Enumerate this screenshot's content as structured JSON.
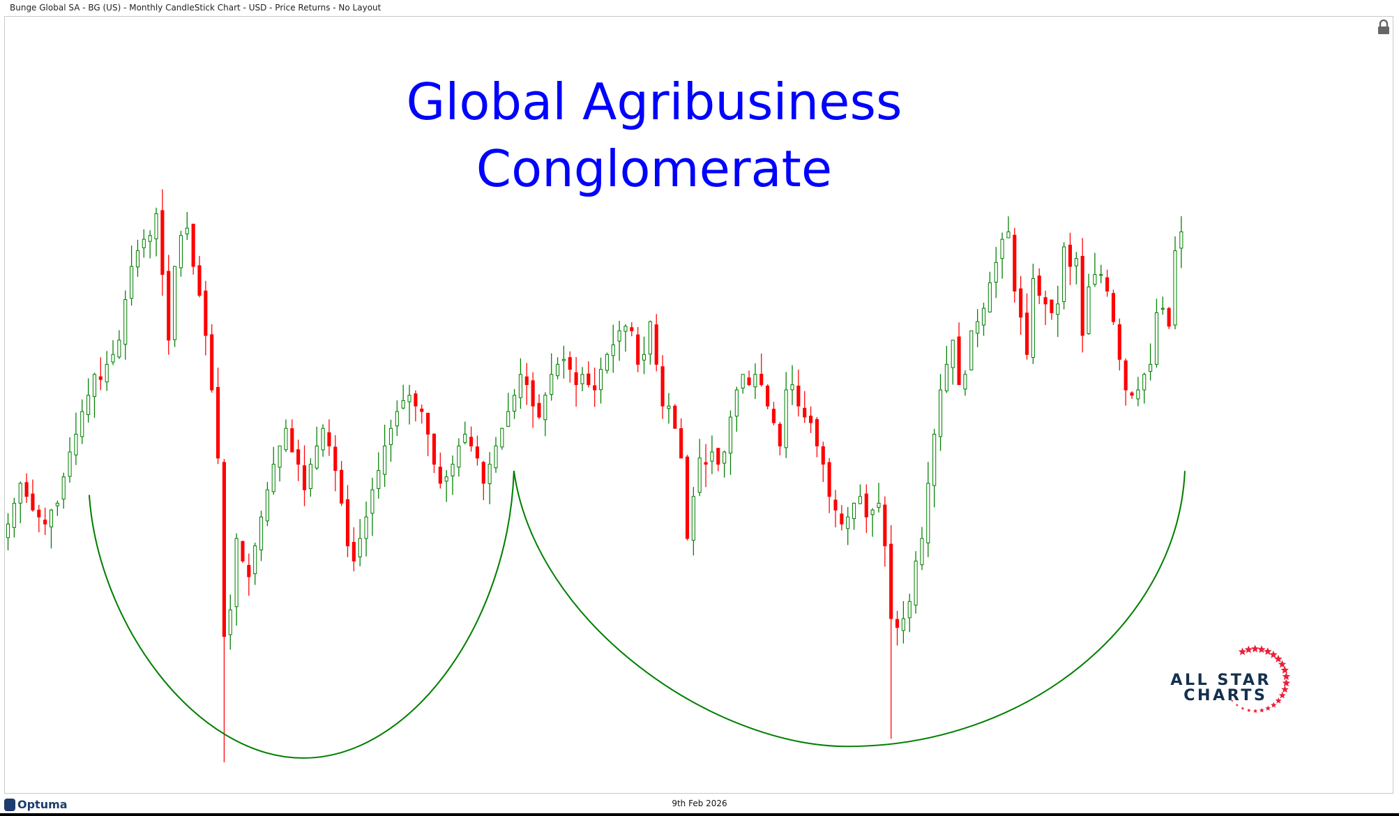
{
  "header": {
    "title": "Bunge Global SA - BG (US) - Monthly CandleStick Chart - USD - Price Returns - No Layout"
  },
  "footer": {
    "date": "9th Feb 2026",
    "brand": "Optuma"
  },
  "logo": {
    "text_line1": "ALL STAR",
    "text_line2": "CHARTS",
    "color_text": "#14304f",
    "color_stars": "#e8213a"
  },
  "icons": {
    "lock": "lock-icon"
  },
  "colors": {
    "up": "#008000",
    "down": "#ff0000",
    "title": "#0000ff",
    "annotation": "#008000"
  },
  "chart_data": {
    "type": "candlestick",
    "frequency": "monthly",
    "currency": "USD",
    "title_line1": "Global Agribusiness",
    "title_line2": "Conglomerate",
    "y_scale": "log",
    "grid": false,
    "closes": [
      63,
      66,
      69,
      67,
      65,
      64,
      63,
      65,
      66,
      70,
      74,
      77,
      81,
      84,
      88,
      87,
      90,
      92,
      95,
      104,
      112,
      116,
      119,
      120,
      126,
      110,
      95,
      112,
      120,
      122,
      112,
      105,
      96,
      85,
      73,
      49,
      52,
      61,
      58,
      56,
      60,
      64,
      68,
      72,
      75,
      78,
      74,
      72,
      68,
      72,
      75,
      78,
      75,
      71,
      66,
      60,
      58,
      61,
      64,
      68,
      71,
      75,
      78,
      81,
      83,
      84,
      82,
      81,
      77,
      72,
      69,
      70,
      72,
      75,
      77,
      75,
      73,
      69,
      72,
      75,
      78,
      81,
      84,
      88,
      86,
      82,
      80,
      84,
      88,
      90,
      91,
      89,
      86,
      88,
      86,
      85,
      89,
      92,
      94,
      97,
      98,
      97,
      90,
      92,
      99,
      90,
      82,
      82,
      78,
      73,
      61,
      67,
      73,
      72,
      74,
      72,
      74,
      80,
      85,
      88,
      86,
      88,
      86,
      82,
      79,
      75,
      85,
      86,
      82,
      80,
      79,
      75,
      72,
      67,
      65,
      63,
      64,
      66,
      67,
      64,
      65,
      66,
      60,
      51,
      50,
      51,
      53,
      58,
      61,
      69,
      77,
      85,
      90,
      95,
      86,
      88,
      97,
      99,
      102,
      108,
      113,
      119,
      121,
      106,
      100,
      92,
      109,
      105,
      103,
      101,
      103,
      117,
      112,
      114,
      96,
      107,
      110,
      110,
      106,
      99,
      91,
      85,
      84,
      85,
      88,
      90,
      101,
      102,
      98,
      116,
      121
    ],
    "low_overrides": [
      {
        "i": 35,
        "low": 37
      },
      {
        "i": 143,
        "low": 39
      }
    ],
    "annotations": [
      {
        "type": "rounded-bottom-arc"
      },
      {
        "type": "rounded-bottom-arc"
      }
    ]
  }
}
